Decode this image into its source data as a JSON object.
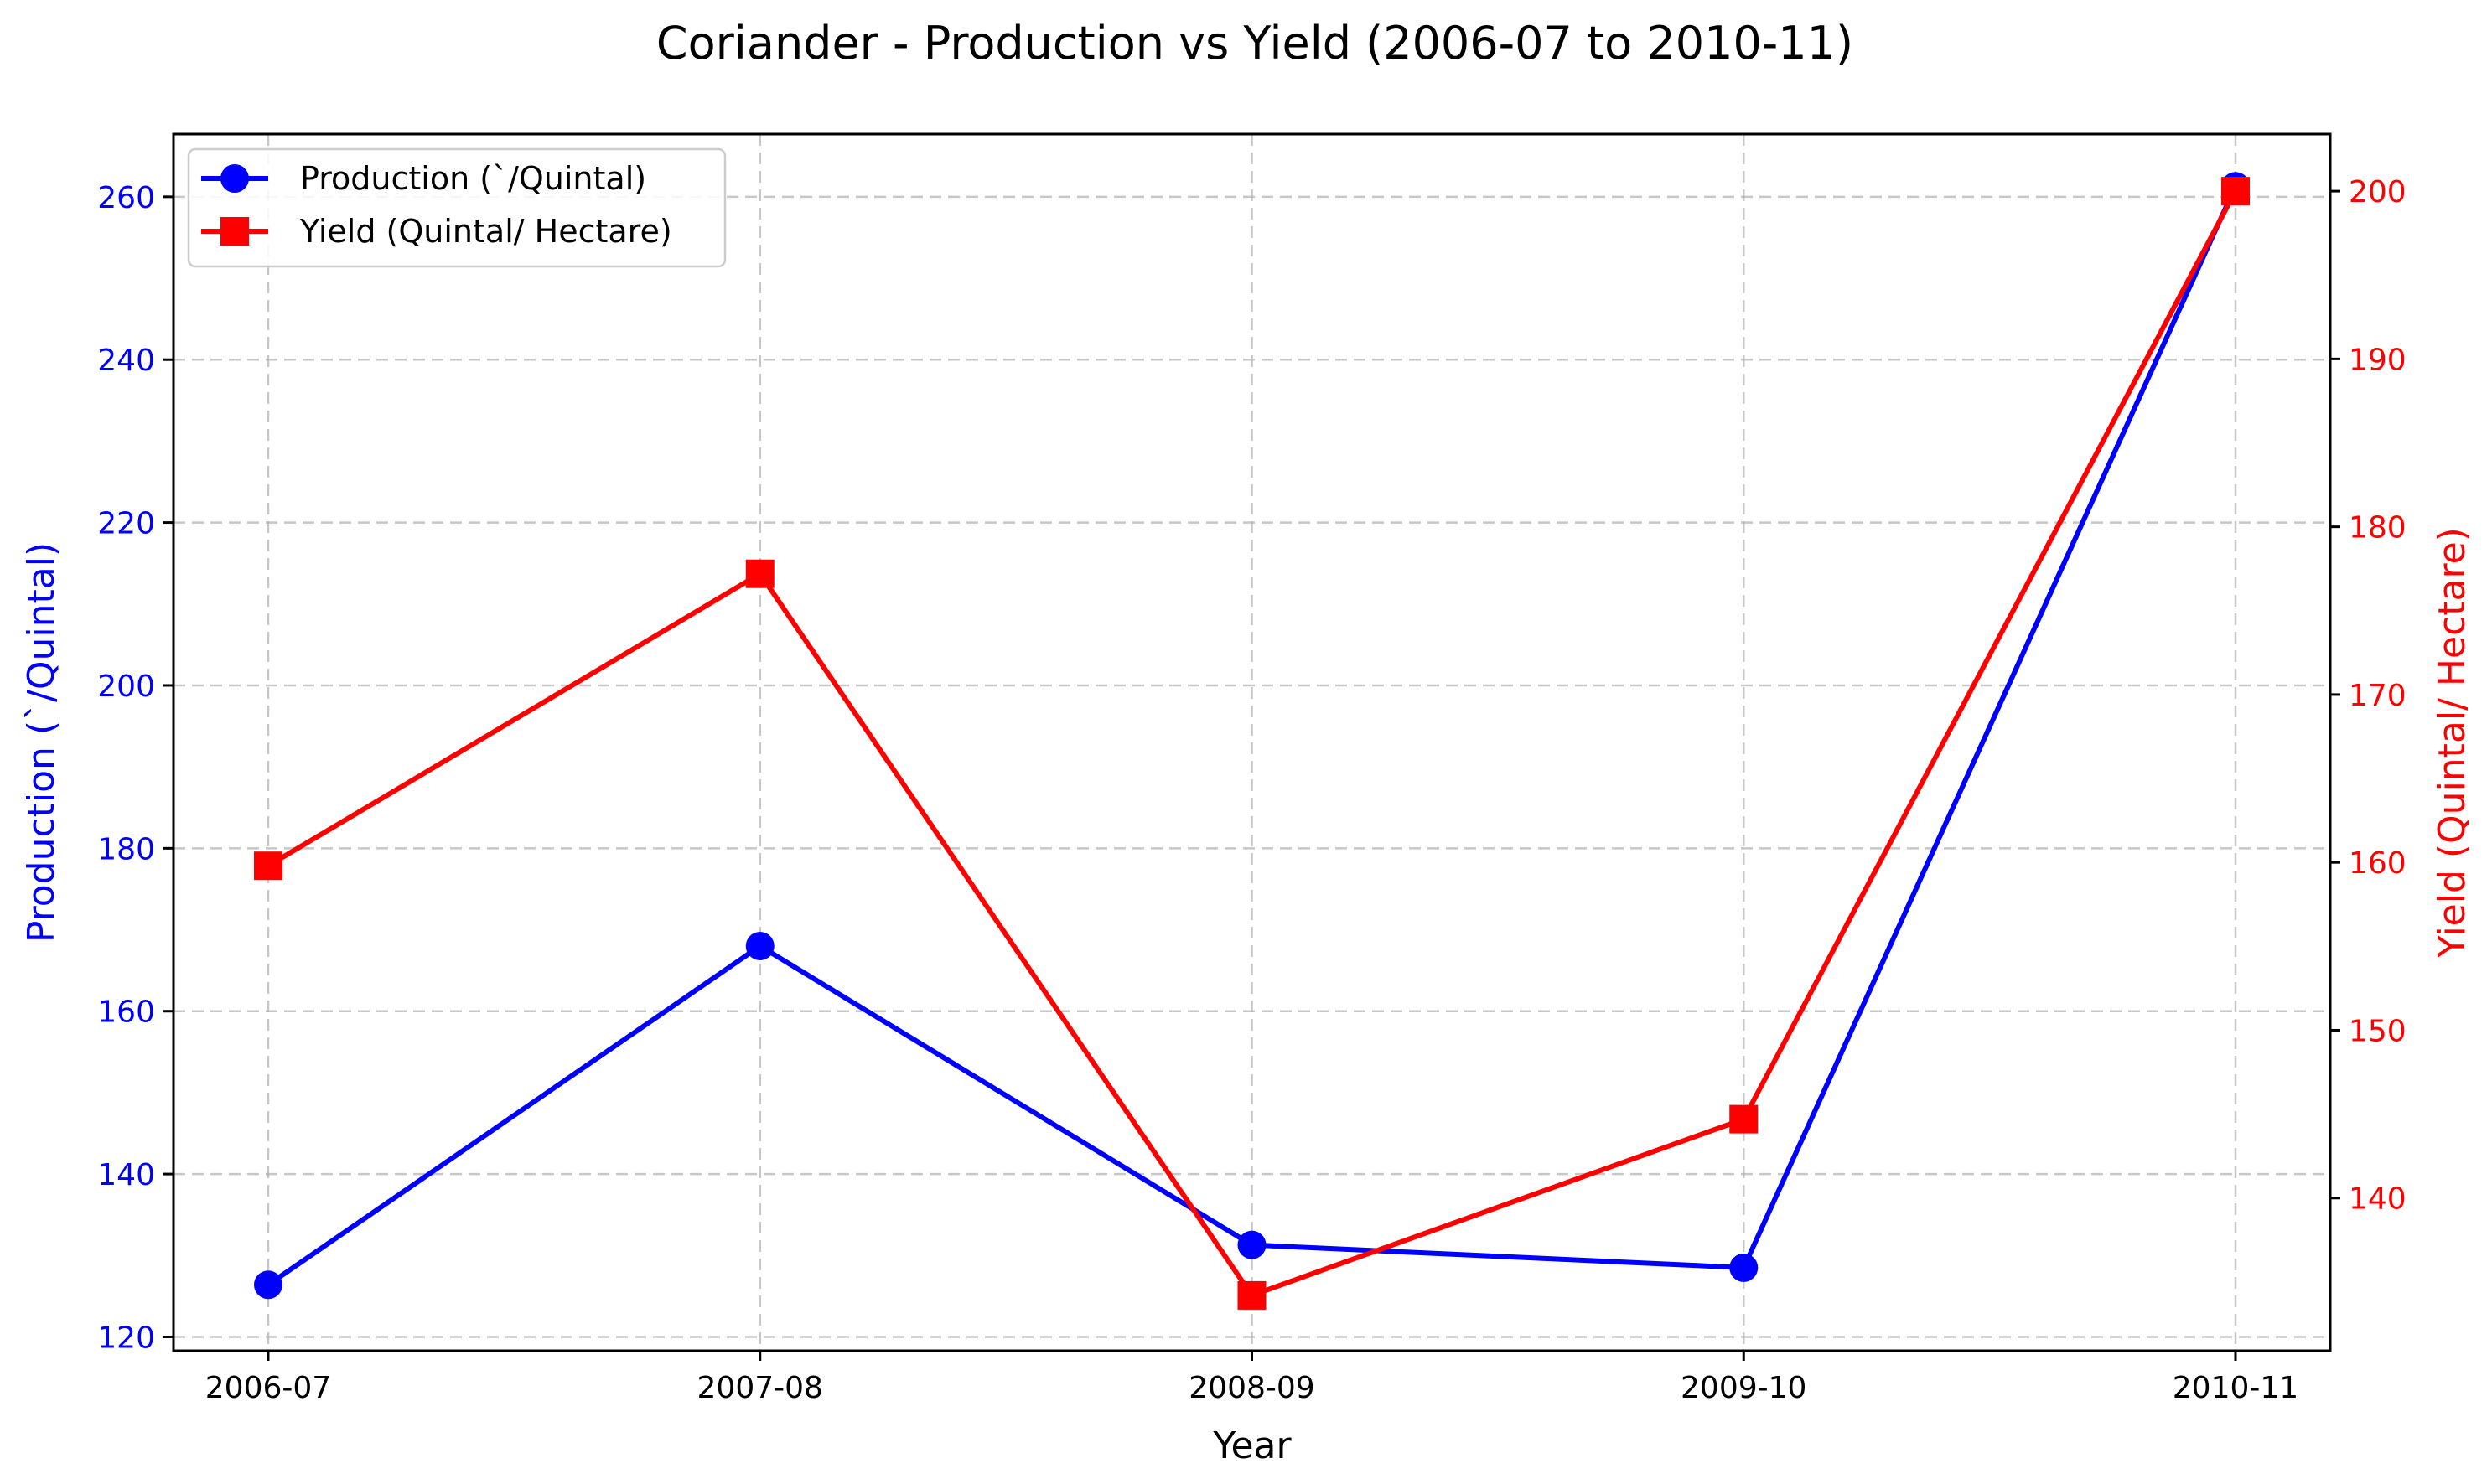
{
  "chart_data": {
    "type": "line",
    "title": "Coriander - Production vs Yield (2006-07 to 2010-11)",
    "xlabel": "Year",
    "categories": [
      "2006-07",
      "2007-08",
      "2008-09",
      "2009-10",
      "2010-11"
    ],
    "y_left": {
      "label": "Production (`/Quintal)",
      "ylim": [
        118.3,
        267.7
      ],
      "ticks": [
        120,
        140,
        160,
        180,
        200,
        220,
        240,
        260
      ],
      "color": "#0000ff"
    },
    "y_right": {
      "label": "Yield (Quintal/ Hectare)",
      "ylim": [
        130.9,
        203.4
      ],
      "ticks": [
        140,
        150,
        160,
        170,
        180,
        190,
        200
      ],
      "color": "#ff0000"
    },
    "series": [
      {
        "name": "Production (`/Quintal)",
        "axis": "left",
        "color": "#0000ff",
        "marker": "circle",
        "values": [
          126.4,
          168.0,
          131.3,
          128.5,
          261.3
        ]
      },
      {
        "name": "Yield (Quintal/ Hectare)",
        "axis": "right",
        "color": "#ff0000",
        "marker": "square",
        "values": [
          159.8,
          177.2,
          134.2,
          144.7,
          200.0
        ]
      }
    ],
    "grid": true,
    "legend_position": "top-left"
  }
}
